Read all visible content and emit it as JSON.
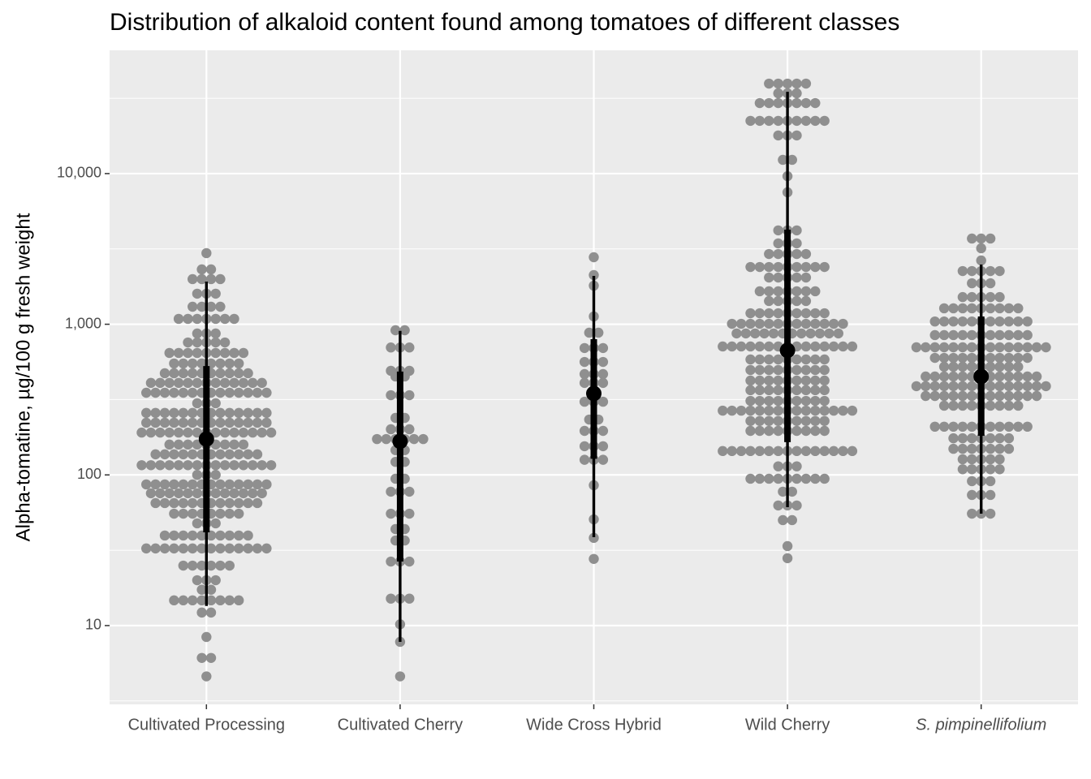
{
  "chart_data": {
    "type": "dotplot",
    "title": "Distribution of alkaloid content found among tomatoes of different classes",
    "ylabel": "Alpha-tomatine, µg/100 g fresh weight",
    "categories": [
      "Cultivated Processing",
      "Cultivated Cherry",
      "Wide Cross Hybrid",
      "Wild Cherry",
      "S. pimpinellifolium"
    ],
    "category_italic": [
      false,
      false,
      false,
      false,
      true
    ],
    "yscale": "log",
    "ylim": [
      3,
      65800
    ],
    "yticks": [
      10,
      100,
      {
        "value": 1000,
        "label": "1,000"
      },
      {
        "value": 10000,
        "label": "10,000"
      }
    ],
    "minor_yticks": [
      3.162,
      31.62,
      316.2,
      3162,
      31623
    ],
    "grid": true,
    "dot_color": "#8f8f8f",
    "interval_color": "#000000",
    "groups": [
      {
        "dot_values": [
          2965,
          2312,
          1993,
          1596,
          1307,
          1086,
          868,
          757,
          645,
          549,
          473,
          408,
          351,
          299,
          258,
          222,
          191,
          159,
          137,
          116,
          100,
          86.5,
          75.5,
          65.0,
          55.3,
          47.7,
          39.6,
          32.5,
          25.0,
          20.0,
          17.3,
          14.7,
          12.2,
          8.4,
          6.1,
          4.6
        ],
        "dot_counts": [
          1,
          2,
          4,
          3,
          4,
          7,
          3,
          5,
          9,
          8,
          10,
          13,
          14,
          3,
          14,
          14,
          15,
          9,
          12,
          15,
          3,
          14,
          13,
          12,
          8,
          3,
          10,
          14,
          6,
          3,
          2,
          8,
          2,
          1,
          2,
          1
        ],
        "median": 173,
        "interval_66": [
          41.6,
          528
        ],
        "interval_95": [
          13.5,
          1919
        ]
      },
      {
        "dot_values": [
          912,
          701,
          491,
          450,
          338,
          239,
          201,
          173,
          146,
          122,
          94.3,
          77.4,
          55.3,
          43.7,
          36.7,
          26.6,
          15.1,
          10.2,
          7.8,
          4.6
        ],
        "dot_counts": [
          2,
          3,
          3,
          2,
          3,
          2,
          3,
          6,
          2,
          2,
          2,
          3,
          3,
          2,
          2,
          3,
          3,
          1,
          1,
          1
        ],
        "median": 167,
        "interval_66": [
          26.6,
          485
        ],
        "interval_95": [
          7.8,
          904
        ]
      },
      {
        "dot_values": [
          2785,
          2120,
          1803,
          1127,
          879,
          695,
          562,
          467,
          408,
          306,
          233,
          196,
          155,
          126,
          85.4,
          50.7,
          38.2,
          27.7
        ],
        "dot_counts": [
          1,
          1,
          1,
          1,
          2,
          3,
          3,
          3,
          3,
          3,
          2,
          3,
          3,
          3,
          1,
          1,
          1,
          1
        ],
        "median": 347,
        "interval_66": [
          128,
          796
        ],
        "interval_95": [
          38.6,
          2094
        ]
      },
      {
        "dot_values": [
          39550,
          34120,
          29380,
          22390,
          17910,
          12340,
          9616,
          7510,
          4197,
          3442,
          2926,
          2399,
          2042,
          1655,
          1426,
          1183,
          1007,
          869,
          712,
          584,
          497,
          423,
          365,
          310,
          267,
          228,
          196,
          144,
          114,
          94.3,
          77.4,
          62.7,
          50.1,
          33.7,
          28.0
        ],
        "dot_counts": [
          5,
          3,
          7,
          9,
          3,
          2,
          1,
          1,
          3,
          3,
          5,
          9,
          5,
          7,
          5,
          9,
          13,
          12,
          15,
          9,
          9,
          9,
          9,
          9,
          15,
          9,
          9,
          15,
          3,
          9,
          2,
          3,
          2,
          1,
          1
        ],
        "median": 670,
        "interval_66": [
          165,
          4246
        ],
        "interval_95": [
          61.1,
          34930
        ]
      },
      {
        "dot_values": [
          3705,
          3193,
          2650,
          2254,
          1871,
          1515,
          1276,
          1043,
          847,
          703,
          598,
          522,
          450,
          388,
          334,
          288,
          209,
          175,
          149,
          127,
          109,
          90.9,
          73.6,
          55.3
        ],
        "dot_counts": [
          3,
          1,
          1,
          5,
          3,
          5,
          9,
          11,
          11,
          15,
          11,
          9,
          13,
          15,
          13,
          9,
          11,
          7,
          7,
          5,
          5,
          3,
          3,
          3
        ],
        "median": 450,
        "interval_66": [
          182,
          1127
        ],
        "interval_95": [
          55.3,
          2490
        ]
      }
    ]
  }
}
